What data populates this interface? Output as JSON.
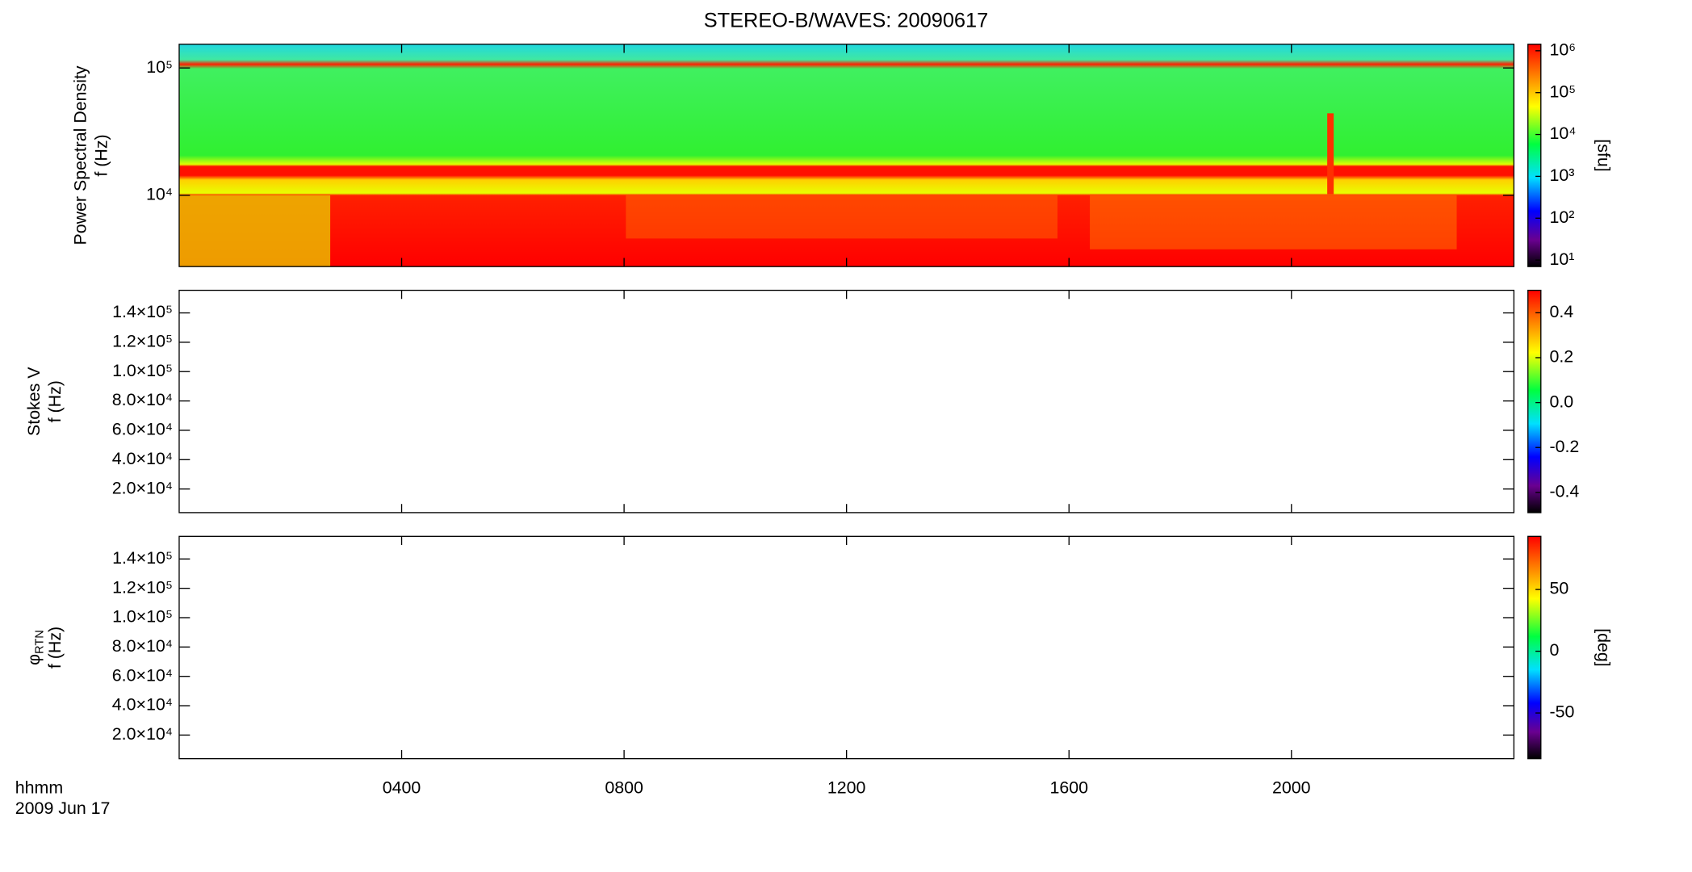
{
  "title": "STEREO-B/WAVES: 20090617",
  "time_axis": {
    "xlabel": "hhmm",
    "date": "2009 Jun 17",
    "xlim": [
      0,
      24
    ],
    "xticks": [
      {
        "value": 4,
        "label": "0400"
      },
      {
        "value": 8,
        "label": "0800"
      },
      {
        "value": 12,
        "label": "1200"
      },
      {
        "value": 16,
        "label": "1600"
      },
      {
        "value": 20,
        "label": "2000"
      }
    ]
  },
  "chart_data": [
    {
      "type": "spectrogram",
      "ylabel": "Power Spectral Density",
      "ylabel2": "f (Hz)",
      "log": true,
      "ylim": [
        2760,
        153500
      ],
      "yticks": [
        {
          "value": 10000,
          "label": "10⁴"
        },
        {
          "value": 100000,
          "label": "10⁵"
        }
      ],
      "colorbar": {
        "label": "[sfu]",
        "log": true,
        "lim": [
          7,
          1430000
        ],
        "ticks": [
          {
            "value": 10,
            "label": "10¹"
          },
          {
            "value": 100,
            "label": "10²"
          },
          {
            "value": 1000,
            "label": "10³"
          },
          {
            "value": 10000,
            "label": "10⁴"
          },
          {
            "value": 100000,
            "label": "10⁵"
          },
          {
            "value": 1000000,
            "label": "10⁶"
          }
        ]
      }
    },
    {
      "type": "spectrogram",
      "ylabel": "Stokes V",
      "ylabel2": "f (Hz)",
      "log": false,
      "ylim": [
        3900,
        155400
      ],
      "yticks": [
        {
          "value": 20000,
          "label": "2.0×10⁴"
        },
        {
          "value": 40000,
          "label": "4.0×10⁴"
        },
        {
          "value": 60000,
          "label": "6.0×10⁴"
        },
        {
          "value": 80000,
          "label": "8.0×10⁴"
        },
        {
          "value": 100000,
          "label": "1.0×10⁵"
        },
        {
          "value": 120000,
          "label": "1.2×10⁵"
        },
        {
          "value": 140000,
          "label": "1.4×10⁵"
        }
      ],
      "colorbar": {
        "log": false,
        "lim": [
          -0.49,
          0.5
        ],
        "ticks": [
          -0.4,
          -0.2,
          {
            "value": 0,
            "label": "0.0"
          },
          0.2,
          0.4
        ]
      }
    },
    {
      "type": "spectrogram",
      "ylabel": "φ",
      "ylabel_sub": "RTN",
      "ylabel2": "f (Hz)",
      "log": false,
      "ylim": [
        3900,
        155400
      ],
      "yticks": [
        {
          "value": 20000,
          "label": "2.0×10⁴"
        },
        {
          "value": 40000,
          "label": "4.0×10⁴"
        },
        {
          "value": 60000,
          "label": "6.0×10⁴"
        },
        {
          "value": 80000,
          "label": "8.0×10⁴"
        },
        {
          "value": 100000,
          "label": "1.0×10⁵"
        },
        {
          "value": 120000,
          "label": "1.2×10⁵"
        },
        {
          "value": 140000,
          "label": "1.4×10⁵"
        }
      ],
      "colorbar": {
        "label": "[deg]",
        "log": false,
        "lim": [
          -87,
          93
        ],
        "ticks": [
          -50,
          0,
          50
        ]
      }
    }
  ]
}
